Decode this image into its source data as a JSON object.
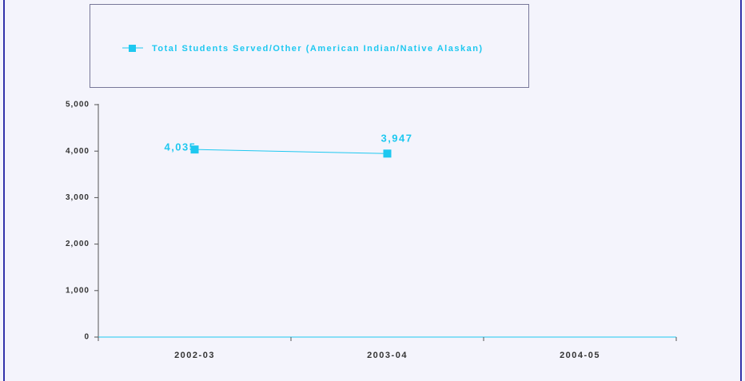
{
  "chart_data": {
    "type": "line",
    "categories": [
      "2002-03",
      "2003-04",
      "2004-05"
    ],
    "series": [
      {
        "name": "Total Students Served/Other (American Indian/Native Alaskan)",
        "color": "#1ec8f0",
        "values": [
          4035,
          3947,
          null
        ],
        "value_labels": [
          "4,035",
          "3,947",
          null
        ]
      }
    ],
    "ylim": [
      0,
      5000
    ],
    "yticks": [
      0,
      {
        "value": 1000,
        "label": "1,000"
      },
      {
        "value": 2000,
        "label": "2,000"
      },
      {
        "value": 3000,
        "label": "3,000"
      },
      {
        "value": 4000,
        "label": "4,000"
      },
      {
        "value": 5000,
        "label": "5,000"
      }
    ],
    "legend": "top"
  }
}
